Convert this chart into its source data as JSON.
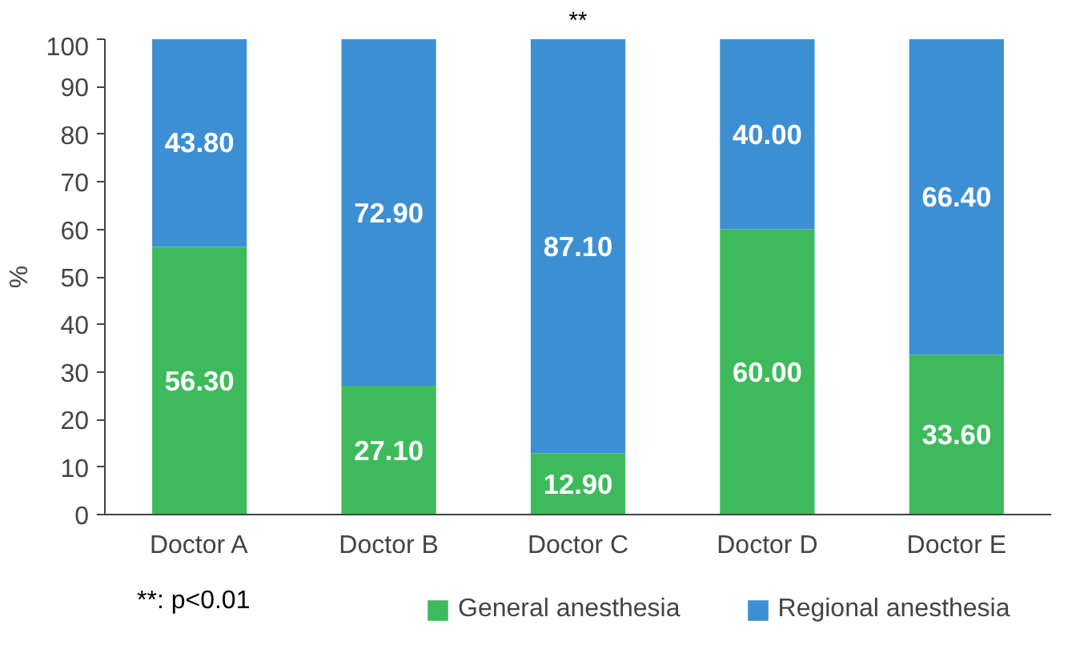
{
  "chart_data": {
    "type": "bar",
    "stacked": true,
    "ylabel": "%",
    "categories": [
      "Doctor A",
      "Doctor B",
      "Doctor C",
      "Doctor D",
      "Doctor E"
    ],
    "series": [
      {
        "name": "General anesthesia",
        "color": "#3dbb5c",
        "values": [
          56.3,
          27.1,
          12.9,
          60.0,
          33.6
        ]
      },
      {
        "name": "Regional anesthesia",
        "color": "#3d8fd3",
        "values": [
          43.8,
          72.9,
          87.1,
          40.0,
          66.4
        ]
      }
    ],
    "value_labels": [
      [
        "56.30",
        "27.10",
        "12.90",
        "60.00",
        "33.60"
      ],
      [
        "43.80",
        "72.90",
        "87.10",
        "40.00",
        "66.40"
      ]
    ],
    "ylim": [
      0,
      100
    ],
    "yticks": [
      0,
      10,
      20,
      30,
      40,
      50,
      60,
      70,
      80,
      90,
      100
    ],
    "grid": false,
    "legend": "bottom",
    "annotations": [
      {
        "text": "**",
        "x": "Doctor C",
        "y": 100
      },
      "**: p<0.01"
    ]
  }
}
